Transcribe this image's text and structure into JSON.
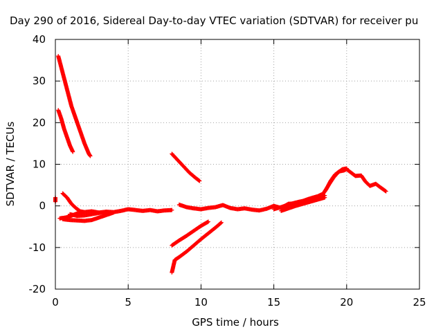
{
  "chart_data": {
    "type": "scatter",
    "title": "Day 290 of 2016, Sidereal Day-to-day VTEC variation (SDTVAR) for receiver pu",
    "xlabel": "GPS time / hours",
    "ylabel": "SDTVAR / TECUs",
    "xlim": [
      0,
      25
    ],
    "ylim": [
      -20,
      40
    ],
    "xticks": [
      0,
      5,
      10,
      15,
      20,
      25
    ],
    "yticks": [
      -20,
      -10,
      0,
      10,
      20,
      30,
      40
    ],
    "grid": true,
    "legend": "none",
    "marker": "plus",
    "color": "#ff0000",
    "series": [
      {
        "x": [
          0.2,
          0.5,
          0.8,
          1.1,
          1.4,
          1.7,
          2.0,
          2.3,
          2.4
        ],
        "y": [
          36,
          32,
          28,
          24,
          21,
          18,
          15,
          12.5,
          12
        ]
      },
      {
        "x": [
          0.2,
          0.4,
          0.6,
          0.8,
          1.0,
          1.2
        ],
        "y": [
          23,
          21,
          18.5,
          16.5,
          14.5,
          13
        ]
      },
      {
        "x": [
          0.0,
          0.0,
          0.0
        ],
        "y": [
          1.5,
          1.0,
          2.0
        ]
      },
      {
        "x": [
          0.5,
          0.8,
          1.1,
          1.4,
          1.7,
          2.0
        ],
        "y": [
          3,
          2,
          0.5,
          -0.5,
          -1.3,
          -1.5
        ]
      },
      {
        "x": [
          0.3,
          0.7,
          1.0,
          1.5,
          2.0,
          2.5,
          3.0,
          3.5,
          4.0,
          4.5,
          5.0,
          5.5,
          6.0,
          6.5,
          7.0,
          7.5,
          8.0
        ],
        "y": [
          -3,
          -2.8,
          -2.5,
          -1.8,
          -1.5,
          -1.3,
          -1.6,
          -1.4,
          -1.5,
          -1.2,
          -0.8,
          -1.0,
          -1.2,
          -1.0,
          -1.3,
          -1.1,
          -1.0
        ]
      },
      {
        "x": [
          0.5,
          1.0,
          1.5,
          2.0,
          2.5,
          3.0,
          3.5,
          4.0
        ],
        "y": [
          -3.2,
          -3.4,
          -3.5,
          -3.6,
          -3.4,
          -2.8,
          -2.2,
          -1.6
        ]
      },
      {
        "x": [
          1.0,
          1.5,
          2.0,
          2.5,
          3.0,
          3.5
        ],
        "y": [
          -2.0,
          -2.4,
          -2.3,
          -2.0,
          -1.7,
          -1.4
        ]
      },
      {
        "x": [
          8.0,
          8.4,
          8.8,
          9.2,
          9.6,
          9.9
        ],
        "y": [
          12.5,
          11,
          9.5,
          8,
          6.8,
          6
        ]
      },
      {
        "x": [
          8.0,
          8.5,
          9.0,
          9.5,
          10.0,
          10.5
        ],
        "y": [
          -9.5,
          -8.3,
          -7.2,
          -6.0,
          -4.8,
          -3.8
        ]
      },
      {
        "x": [
          8.0,
          8.2,
          8.5,
          9.0,
          9.5,
          10.0,
          10.5,
          11.0,
          11.4
        ],
        "y": [
          -16,
          -13,
          -12.3,
          -11,
          -9.5,
          -8,
          -6.6,
          -5.2,
          -4.0
        ]
      },
      {
        "x": [
          8.5,
          9.0,
          9.5,
          10.0,
          10.5,
          11.0,
          11.5,
          12.0,
          12.5,
          13.0,
          13.5,
          14.0,
          14.5,
          15.0,
          15.5,
          16.0,
          16.5,
          17.0,
          17.5,
          18.0,
          18.5
        ],
        "y": [
          0.3,
          -0.3,
          -0.6,
          -0.8,
          -0.5,
          -0.3,
          0.2,
          -0.5,
          -0.8,
          -0.6,
          -0.9,
          -1.1,
          -0.7,
          0.0,
          -0.5,
          0.5,
          0.6,
          1.0,
          1.3,
          2.0,
          2.5
        ]
      },
      {
        "x": [
          15.0,
          15.5,
          16.0,
          16.5,
          17.0,
          17.5,
          18.0,
          18.3
        ],
        "y": [
          -0.8,
          -0.3,
          0.3,
          0.8,
          1.2,
          1.8,
          2.3,
          2.8
        ]
      },
      {
        "x": [
          15.5,
          16.0,
          16.5,
          17.0,
          17.5,
          18.0,
          18.5
        ],
        "y": [
          -1.2,
          -0.6,
          0.0,
          0.5,
          1.0,
          1.5,
          2.0
        ]
      },
      {
        "x": [
          18.3,
          18.6,
          18.9,
          19.2,
          19.5,
          19.8,
          20.0,
          20.3,
          20.6,
          21.0,
          21.3,
          21.6,
          22.0,
          22.3,
          22.7
        ],
        "y": [
          2.5,
          4.0,
          6.0,
          7.5,
          8.3,
          8.5,
          8.8,
          8.0,
          7.2,
          7.3,
          5.8,
          4.8,
          5.3,
          4.5,
          3.5
        ]
      },
      {
        "x": [
          18.5,
          18.8,
          19.1,
          19.4,
          19.7,
          20.0
        ],
        "y": [
          3.5,
          5.2,
          6.8,
          8.0,
          8.8,
          9.0
        ]
      }
    ]
  }
}
